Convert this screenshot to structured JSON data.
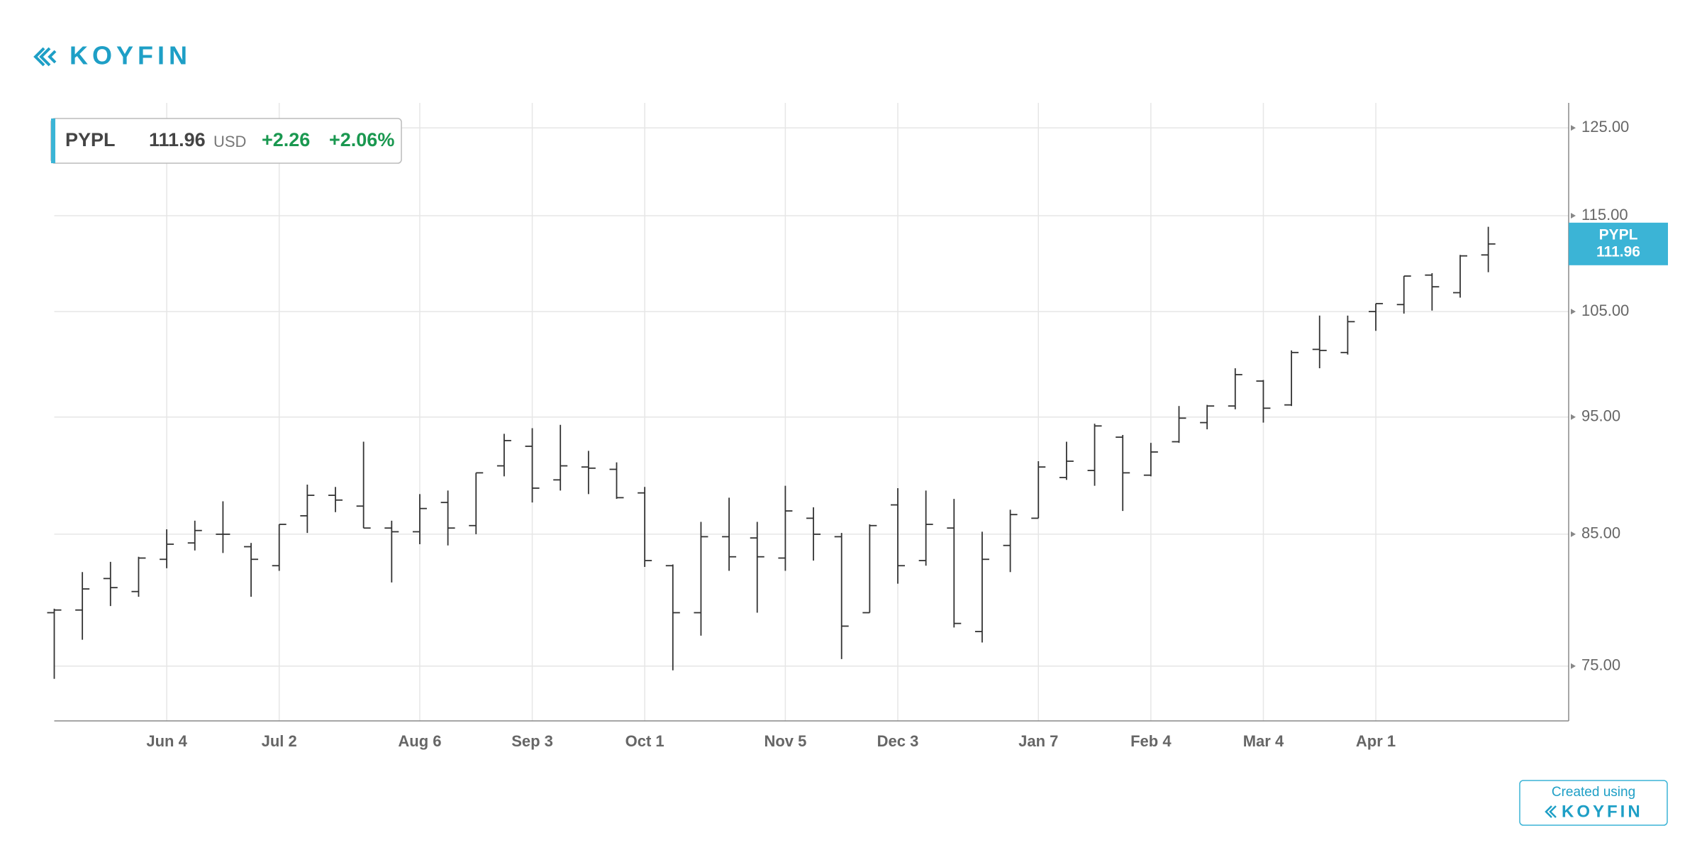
{
  "header": {
    "logo": "KOYFIN"
  },
  "quote": {
    "currency": "USD",
    "change": "+2.26",
    "change_pct": "+2.06%"
  },
  "footer": {
    "text": "Created using",
    "logo": "KOYFIN"
  },
  "chart_data": {
    "type": "ohlc",
    "log_scale": true,
    "grid": true,
    "categories": [
      null,
      null,
      null,
      null,
      "Jun 4",
      null,
      null,
      null,
      "Jul 2",
      null,
      null,
      null,
      null,
      "Aug 6",
      null,
      null,
      null,
      "Sep 3",
      null,
      null,
      null,
      "Oct 1",
      null,
      null,
      null,
      null,
      "Nov 5",
      null,
      null,
      null,
      "Dec 3",
      null,
      null,
      null,
      null,
      "Jan 7",
      null,
      null,
      null,
      "Feb 4",
      null,
      null,
      null,
      "Mar 4",
      null,
      null,
      null,
      "Apr 1",
      null,
      null,
      null,
      null
    ],
    "ylim": [
      71.2,
      128
    ],
    "yticks": [
      {
        "value": 75,
        "label": "75.00"
      },
      {
        "value": 85,
        "label": "85.00"
      },
      {
        "value": 95,
        "label": "95.00"
      },
      {
        "value": 105,
        "label": "105.00"
      },
      {
        "value": 115,
        "label": "115.00"
      },
      {
        "value": 125,
        "label": "125.00"
      }
    ],
    "series": [
      {
        "name": "PYPL",
        "color": "#333333",
        "badge_color": "#3bb4d6",
        "open": [
          78.9,
          79.1,
          81.5,
          80.5,
          83.0,
          84.3,
          85.0,
          84.0,
          82.5,
          86.5,
          88.2,
          87.3,
          85.5,
          85.2,
          87.6,
          85.7,
          90.7,
          92.4,
          89.5,
          90.6,
          90.4,
          88.4,
          82.5,
          78.9,
          84.8,
          84.7,
          83.1,
          86.3,
          84.8,
          78.9,
          87.4,
          82.9,
          85.5,
          77.5,
          84.1,
          86.3,
          89.7,
          90.3,
          93.2,
          89.9,
          92.8,
          94.5,
          96.0,
          98.3,
          96.1,
          101.3,
          101.0,
          105.0,
          105.7,
          108.7,
          106.9,
          110.8
        ],
        "high": [
          79.2,
          82.0,
          82.8,
          83.2,
          85.4,
          86.1,
          87.7,
          84.3,
          85.8,
          89.1,
          88.9,
          92.8,
          86.1,
          88.3,
          88.6,
          90.1,
          93.5,
          94.0,
          94.3,
          92.0,
          91.0,
          88.9,
          82.6,
          86.0,
          88.0,
          86.0,
          89.0,
          87.2,
          85.1,
          85.8,
          88.8,
          88.6,
          87.9,
          85.2,
          87.0,
          91.1,
          92.8,
          94.4,
          93.4,
          92.7,
          96.0,
          96.1,
          99.5,
          98.4,
          101.2,
          104.6,
          104.6,
          105.8,
          108.6,
          108.9,
          110.8,
          113.8
        ],
        "low": [
          74.1,
          76.9,
          79.4,
          80.1,
          82.3,
          83.7,
          83.5,
          80.1,
          82.1,
          85.1,
          86.8,
          85.5,
          81.2,
          84.2,
          84.1,
          85.0,
          89.8,
          87.6,
          88.6,
          88.3,
          87.9,
          82.4,
          74.7,
          77.2,
          82.1,
          78.9,
          82.1,
          82.9,
          75.5,
          78.9,
          81.1,
          82.5,
          77.8,
          76.7,
          82.0,
          86.3,
          89.5,
          89.0,
          86.9,
          89.8,
          92.7,
          93.9,
          95.7,
          94.5,
          96.0,
          99.5,
          100.8,
          103.1,
          104.8,
          105.1,
          106.4,
          109.0
        ],
        "close": [
          79.1,
          80.7,
          80.8,
          83.1,
          84.2,
          85.3,
          85.0,
          83.0,
          85.8,
          88.2,
          87.8,
          85.5,
          85.2,
          87.1,
          85.5,
          90.1,
          92.9,
          88.8,
          90.7,
          90.5,
          88.0,
          82.9,
          78.9,
          84.8,
          83.2,
          83.2,
          86.9,
          85.0,
          77.9,
          85.7,
          82.5,
          85.8,
          78.1,
          83.0,
          86.6,
          90.6,
          91.1,
          94.2,
          90.1,
          91.9,
          94.9,
          96.0,
          98.9,
          95.8,
          101.0,
          101.2,
          104.0,
          105.8,
          108.6,
          107.5,
          110.7,
          111.96
        ]
      }
    ]
  }
}
